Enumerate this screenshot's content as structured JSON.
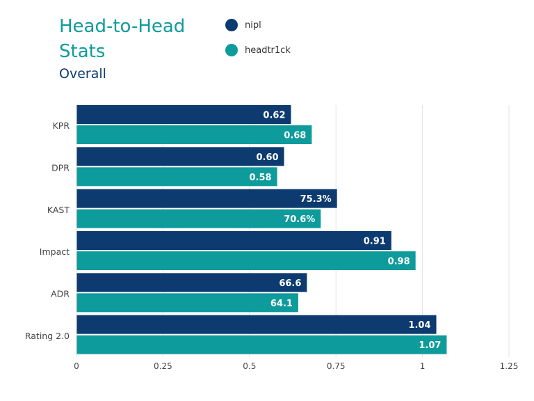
{
  "header": {
    "title": "Head-to-Head Stats",
    "subtitle": "Overall"
  },
  "colors": {
    "nipl": "#0d3b70",
    "headtr1ck": "#0e9b9c",
    "grid": "#e3e3e3",
    "axis_text": "#444444",
    "bar_text": "#ffffff"
  },
  "chart_data": {
    "type": "bar",
    "orientation": "horizontal",
    "title": "Head-to-Head Stats",
    "subtitle": "Overall",
    "categories": [
      "KPR",
      "DPR",
      "KAST",
      "Impact",
      "ADR",
      "Rating 2.0"
    ],
    "series": [
      {
        "name": "nipl",
        "values": [
          0.62,
          0.6,
          0.753,
          0.91,
          0.666,
          1.04
        ],
        "labels": [
          "0.62",
          "0.60",
          "75.3%",
          "0.91",
          "66.6",
          "1.04"
        ]
      },
      {
        "name": "headtr1ck",
        "values": [
          0.68,
          0.58,
          0.706,
          0.98,
          0.641,
          1.07
        ],
        "labels": [
          "0.68",
          "0.58",
          "70.6%",
          "0.98",
          "64.1",
          "1.07"
        ]
      }
    ],
    "x_ticks": [
      "0",
      "0.25",
      "0.5",
      "0.75",
      "1",
      "1.25"
    ],
    "xlim": [
      0,
      1.25
    ],
    "grid": true,
    "legend": "top"
  }
}
